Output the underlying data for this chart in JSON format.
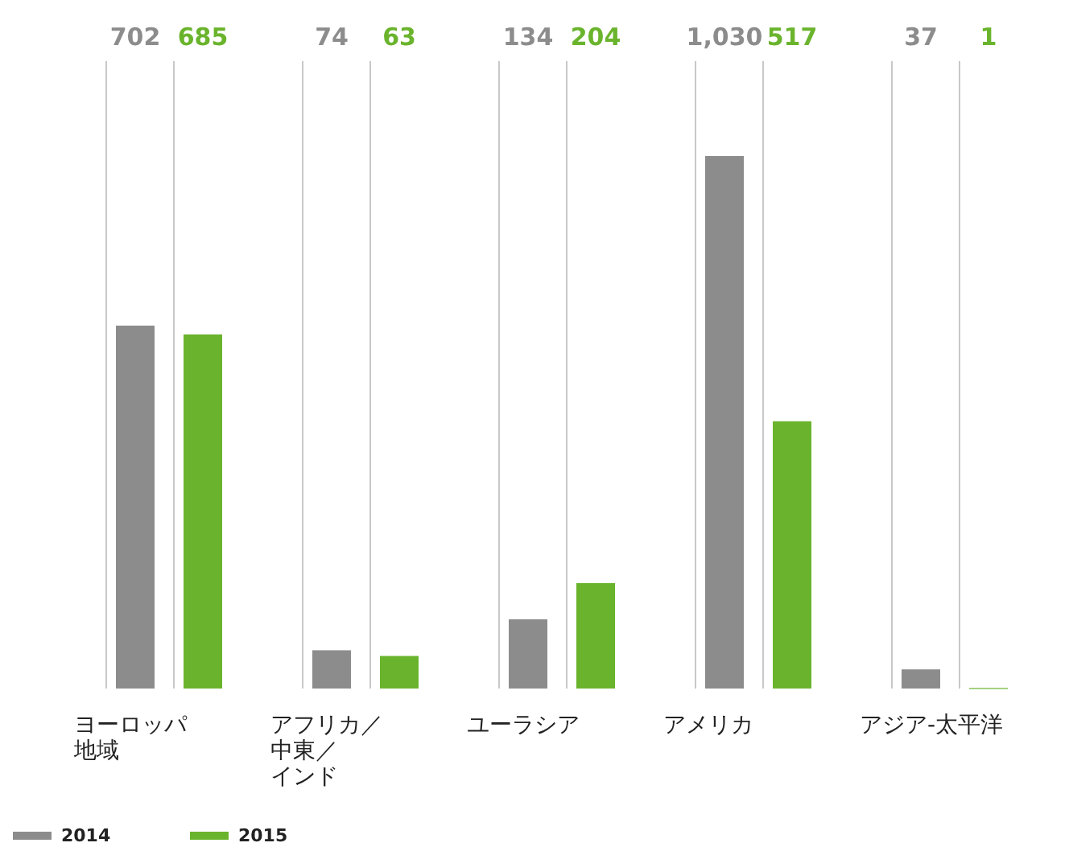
{
  "chart_data": {
    "type": "bar",
    "categories": [
      "ヨーロッパ地域",
      "アフリカ／中東／インド",
      "ユーラシア",
      "アメリカ",
      "アジア-太平洋"
    ],
    "series": [
      {
        "name": "2014",
        "color": "#8c8c8c",
        "values": [
          702,
          74,
          134,
          1030,
          37
        ],
        "value_labels": [
          "702",
          "74",
          "134",
          "1,030",
          "37"
        ]
      },
      {
        "name": "2015",
        "color": "#6ab42d",
        "values": [
          685,
          63,
          204,
          517,
          1
        ],
        "value_labels": [
          "685",
          "63",
          "204",
          "517",
          "1"
        ]
      }
    ],
    "legend": "bottom left"
  }
}
